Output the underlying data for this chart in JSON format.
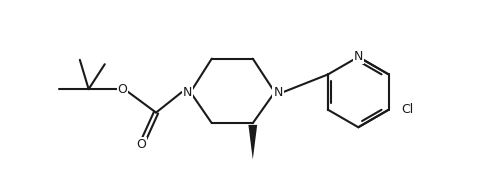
{
  "background_color": "#ffffff",
  "line_color": "#1a1a1a",
  "line_width": 1.5,
  "font_size": 9.0,
  "fig_width": 4.88,
  "fig_height": 1.9,
  "dpi": 100,
  "xlim": [
    0.2,
    8.5
  ],
  "ylim": [
    1.0,
    4.2
  ]
}
